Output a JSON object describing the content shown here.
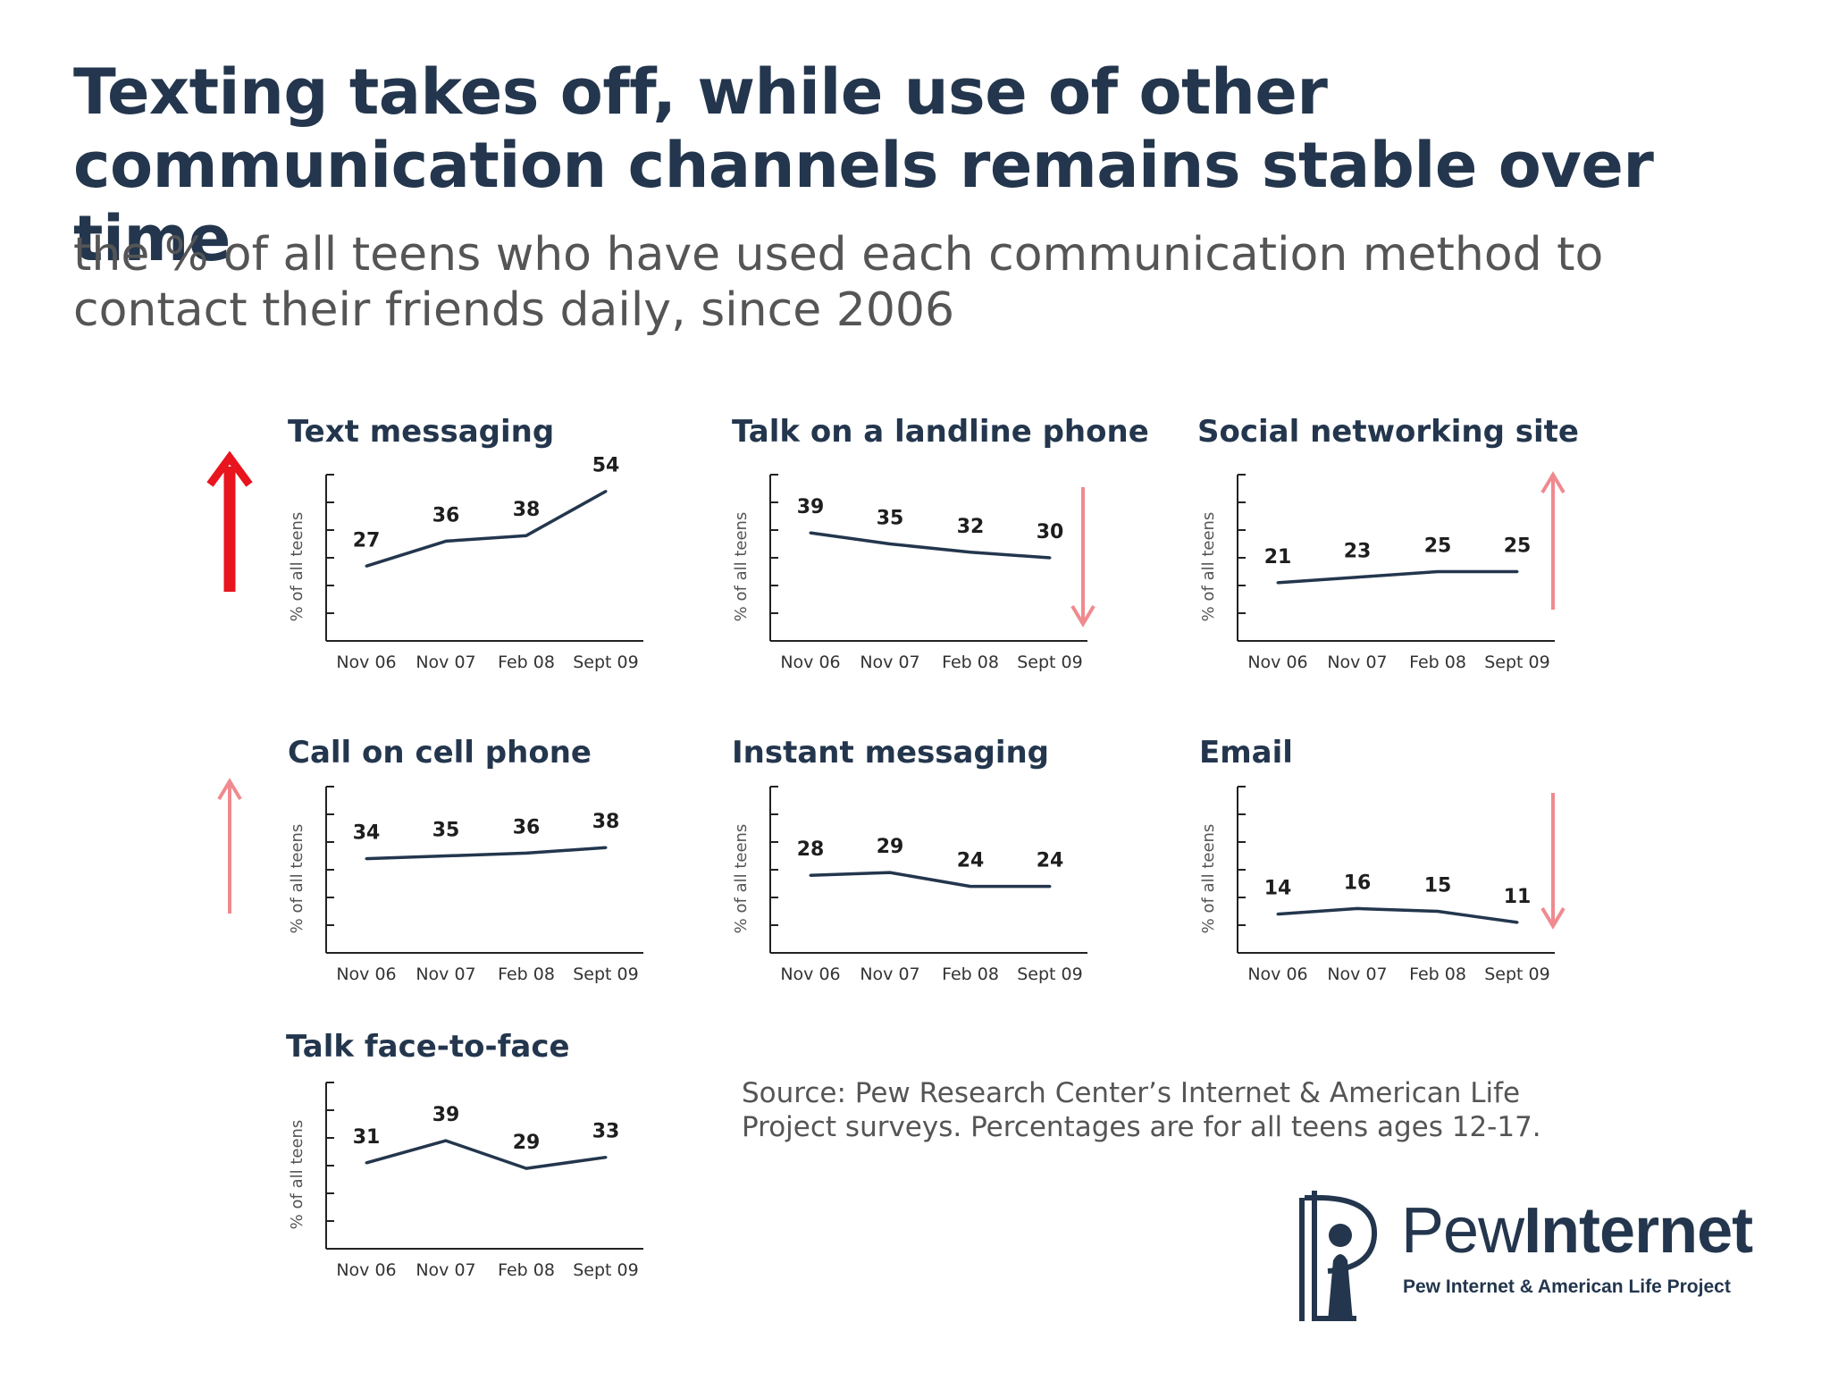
{
  "title": "Texting takes off, while use of other communication channels remains stable over time",
  "subtitle": "the % of all teens who have used each communication method to contact their friends daily, since 2006",
  "source": "Source: Pew Research Center’s Internet & American Life Project surveys. Percentages are for all teens ages 12-17.",
  "logo": {
    "main_light": "Pew",
    "main_bold": "Internet",
    "sub": "Pew Internet & American Life Project"
  },
  "colors": {
    "ink": "#23364d",
    "strong_arrow": "#e8141e",
    "light_arrow": "#ef8a8f"
  },
  "chart_data": [
    {
      "type": "line",
      "title": "Text messaging",
      "ylabel": "% of all teens",
      "x": [
        "Nov 06",
        "Nov 07",
        "Feb 08",
        "Sept 09"
      ],
      "values": [
        27,
        36,
        38,
        54
      ],
      "ylim": [
        0,
        60
      ],
      "trend": "up",
      "trend_strength": "strong"
    },
    {
      "type": "line",
      "title": "Talk on a landline phone",
      "ylabel": "% of all teens",
      "x": [
        "Nov 06",
        "Nov 07",
        "Feb 08",
        "Sept 09"
      ],
      "values": [
        39,
        35,
        32,
        30
      ],
      "ylim": [
        0,
        60
      ],
      "trend": "down",
      "trend_strength": "light"
    },
    {
      "type": "line",
      "title": "Social networking site",
      "ylabel": "% of all teens",
      "x": [
        "Nov 06",
        "Nov 07",
        "Feb 08",
        "Sept 09"
      ],
      "values": [
        21,
        23,
        25,
        25
      ],
      "ylim": [
        0,
        60
      ],
      "trend": "up",
      "trend_strength": "light"
    },
    {
      "type": "line",
      "title": "Call on cell phone",
      "ylabel": "% of all teens",
      "x": [
        "Nov 06",
        "Nov 07",
        "Feb 08",
        "Sept 09"
      ],
      "values": [
        34,
        35,
        36,
        38
      ],
      "ylim": [
        0,
        60
      ],
      "trend": "up",
      "trend_strength": "light"
    },
    {
      "type": "line",
      "title": "Instant messaging",
      "ylabel": "% of all teens",
      "x": [
        "Nov 06",
        "Nov 07",
        "Feb 08",
        "Sept 09"
      ],
      "values": [
        28,
        29,
        24,
        24
      ],
      "ylim": [
        0,
        60
      ],
      "trend": "none",
      "trend_strength": "none"
    },
    {
      "type": "line",
      "title": "Email",
      "ylabel": "% of all teens",
      "x": [
        "Nov 06",
        "Nov 07",
        "Feb 08",
        "Sept 09"
      ],
      "values": [
        14,
        16,
        15,
        11
      ],
      "ylim": [
        0,
        60
      ],
      "trend": "down",
      "trend_strength": "light"
    },
    {
      "type": "line",
      "title": "Talk face-to-face",
      "ylabel": "% of all teens",
      "x": [
        "Nov 06",
        "Nov 07",
        "Feb 08",
        "Sept 09"
      ],
      "values": [
        31,
        39,
        29,
        33
      ],
      "ylim": [
        0,
        60
      ],
      "trend": "none",
      "trend_strength": "none"
    }
  ]
}
